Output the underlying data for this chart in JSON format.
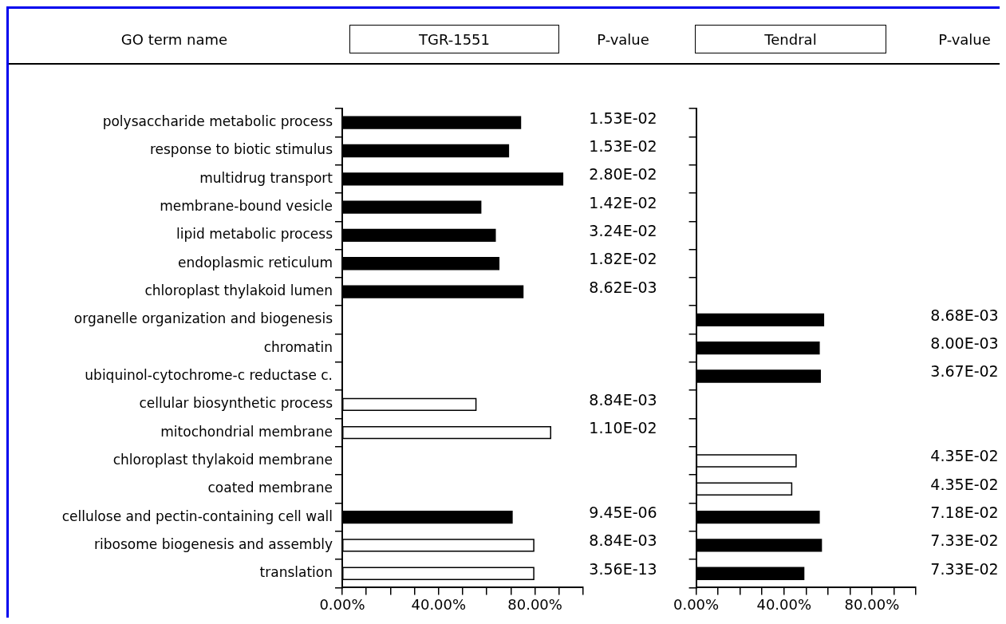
{
  "chart_data": [
    {
      "type": "bar",
      "orientation": "horizontal",
      "stacked": true,
      "title": "TGR-1551",
      "ylabel": "GO term name",
      "categories": [
        "polysaccharide metabolic process",
        "response to biotic stimulus",
        "multidrug transport",
        "membrane-bound vesicle",
        "lipid metabolic process",
        "endoplasmic reticulum",
        "chloroplast thylakoid lumen",
        "organelle organization and biogenesis",
        "chromatin",
        "ubiquinol-cytochrome-c reductase c.",
        "cellular biosynthetic process",
        "mitochondrial membrane",
        "chloroplast thylakoid membrane",
        "coated membrane",
        "cellulose and pectin-containing cell wall",
        "ribosome biogenesis and assembly",
        "translation"
      ],
      "series": [
        {
          "color": "#000000",
          "values": [
            74,
            69,
            91.5,
            57.5,
            63.5,
            65,
            75,
            null,
            null,
            null,
            null,
            null,
            null,
            null,
            70.5,
            null,
            null
          ]
        },
        {
          "color": "#ffffff",
          "values": [
            null,
            null,
            null,
            null,
            null,
            null,
            null,
            null,
            null,
            null,
            55.5,
            86.5,
            null,
            null,
            null,
            79.5,
            79.5
          ]
        }
      ],
      "xlim": [
        0,
        100
      ],
      "xticks": [
        {
          "value": 0,
          "label": "0.00%"
        },
        {
          "value": 10,
          "label": null
        },
        {
          "value": 20,
          "label": null
        },
        {
          "value": 30,
          "label": null
        },
        {
          "value": 40,
          "label": "40.00%"
        },
        {
          "value": 50,
          "label": null
        },
        {
          "value": 60,
          "label": null
        },
        {
          "value": 70,
          "label": null
        },
        {
          "value": 80,
          "label": "80.00%"
        },
        {
          "value": 90,
          "label": null
        },
        {
          "value": 100,
          "label": null
        }
      ],
      "grid": false,
      "legend": false,
      "annotations": [
        "P-value",
        "1.53E-02",
        "1.53E-02",
        "2.80E-02",
        "1.42E-02",
        "3.24E-02",
        "1.82E-02",
        "8.62E-03",
        "8.84E-03",
        "1.10E-02",
        "9.45E-06",
        "8.84E-03",
        "3.56E-13"
      ]
    },
    {
      "type": "bar",
      "orientation": "horizontal",
      "stacked": true,
      "title": "Tendral",
      "tick_labels": "x",
      "categories": [
        null,
        null,
        null,
        null,
        null,
        null,
        null,
        null,
        null,
        null,
        null,
        null,
        null,
        null,
        null,
        null,
        null
      ],
      "series": [
        {
          "color": "#000000",
          "values": [
            null,
            null,
            null,
            null,
            null,
            null,
            null,
            58,
            56,
            56.5,
            null,
            null,
            null,
            null,
            56,
            57,
            49
          ]
        },
        {
          "color": "#ffffff",
          "values": [
            null,
            null,
            null,
            null,
            null,
            null,
            null,
            null,
            null,
            null,
            null,
            null,
            45.5,
            43.5,
            null,
            null,
            null
          ]
        }
      ],
      "xlim": [
        0,
        100
      ],
      "xticks": [
        {
          "value": 0,
          "label": "0.00%"
        },
        {
          "value": 10,
          "label": null
        },
        {
          "value": 20,
          "label": null
        },
        {
          "value": 30,
          "label": null
        },
        {
          "value": 40,
          "label": "40.00%"
        },
        {
          "value": 50,
          "label": null
        },
        {
          "value": 60,
          "label": null
        },
        {
          "value": 70,
          "label": null
        },
        {
          "value": 80,
          "label": "80.00%"
        },
        {
          "value": 90,
          "label": null
        },
        {
          "value": 100,
          "label": null
        }
      ],
      "grid": false,
      "legend": false,
      "annotations": [
        "P-value",
        "8.68E-03",
        "8.00E-03",
        "3.67E-02",
        "4.35E-02",
        "4.35E-02",
        "7.18E-02",
        "7.33E-02",
        "7.33E-02"
      ]
    }
  ]
}
